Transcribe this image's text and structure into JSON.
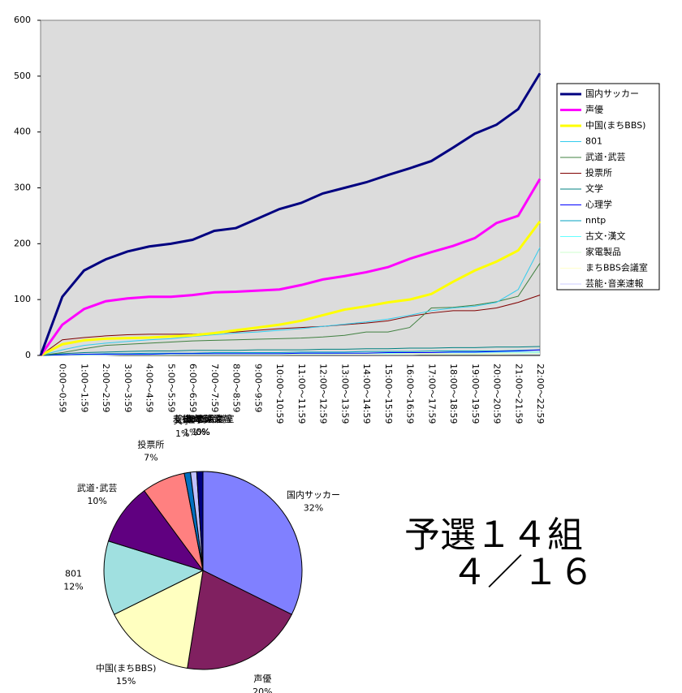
{
  "chart_data": [
    {
      "type": "line",
      "categories": [
        null,
        "0:00～0:59",
        "1:00～1:59",
        "2:00～2:59",
        "3:00～3:59",
        "4:00～4:59",
        "5:00～5:59",
        "6:00～6:59",
        "7:00～7:59",
        "8:00～8:59",
        "9:00～9:59",
        "10:00～10:59",
        "11:00～11:59",
        "12:00～12:59",
        "13:00～13:59",
        "14:00～14:59",
        "15:00～15:59",
        "16:00～16:59",
        "17:00～17:59",
        "18:00～18:59",
        "19:00～19:59",
        "20:00～20:59",
        "21:00～21:59",
        "22:00～22:59"
      ],
      "ylim": [
        0,
        600
      ],
      "yticks": [
        0,
        100,
        200,
        300,
        400,
        500,
        600
      ],
      "series": [
        {
          "name": "国内サッカー",
          "color": "#000080",
          "line_width": 3,
          "values": [
            0,
            105,
            152,
            172,
            186,
            195,
            200,
            207,
            223,
            228,
            245,
            262,
            273,
            290,
            300,
            310,
            323,
            335,
            348,
            372,
            397,
            413,
            441,
            505
          ]
        },
        {
          "name": "声優",
          "color": "#ff00ff",
          "line_width": 3,
          "values": [
            0,
            55,
            83,
            97,
            102,
            105,
            105,
            108,
            113,
            114,
            116,
            118,
            126,
            136,
            142,
            149,
            158,
            173,
            185,
            196,
            210,
            237,
            250,
            316
          ]
        },
        {
          "name": "中国(まちBBS)",
          "color": "#ffff00",
          "line_width": 3,
          "values": [
            0,
            20,
            27,
            30,
            31,
            32,
            34,
            36,
            40,
            45,
            50,
            55,
            62,
            72,
            82,
            88,
            95,
            100,
            110,
            132,
            152,
            168,
            188,
            240
          ]
        },
        {
          "name": "801",
          "color": "#33ccee",
          "line_width": 1,
          "values": [
            0,
            10,
            18,
            22,
            25,
            28,
            30,
            34,
            37,
            40,
            42,
            45,
            48,
            52,
            56,
            60,
            65,
            72,
            80,
            85,
            88,
            95,
            118,
            193
          ]
        },
        {
          "name": "武道･武芸",
          "color": "#408040",
          "line_width": 1,
          "values": [
            0,
            5,
            12,
            18,
            20,
            22,
            24,
            26,
            27,
            28,
            29,
            30,
            31,
            33,
            36,
            42,
            42,
            50,
            85,
            86,
            90,
            96,
            106,
            165
          ]
        },
        {
          "name": "投票所",
          "color": "#800000",
          "line_width": 1,
          "values": [
            0,
            28,
            32,
            35,
            37,
            38,
            38,
            38,
            40,
            42,
            45,
            48,
            50,
            52,
            55,
            58,
            62,
            70,
            76,
            80,
            80,
            85,
            95,
            108
          ]
        },
        {
          "name": "文学",
          "color": "#008080",
          "line_width": 1,
          "values": [
            0,
            3,
            5,
            6,
            7,
            8,
            8,
            9,
            9,
            9,
            10,
            10,
            10,
            11,
            11,
            12,
            12,
            13,
            13,
            14,
            14,
            15,
            15,
            16
          ]
        },
        {
          "name": "心理学",
          "color": "#0000ff",
          "line_width": 1,
          "values": [
            0,
            1,
            2,
            2,
            2,
            2,
            3,
            3,
            3,
            3,
            3,
            3,
            4,
            4,
            4,
            4,
            5,
            5,
            5,
            6,
            6,
            7,
            8,
            10
          ]
        },
        {
          "name": "nntp",
          "color": "#00a0c0",
          "line_width": 1,
          "values": [
            0,
            1,
            2,
            3,
            3,
            4,
            4,
            4,
            5,
            5,
            5,
            5,
            6,
            6,
            6,
            7,
            7,
            7,
            8,
            8,
            8,
            8,
            9,
            10
          ]
        },
        {
          "name": "古文･漢文",
          "color": "#66ffff",
          "line_width": 1,
          "values": [
            0,
            1,
            1,
            2,
            2,
            2,
            3,
            3,
            3,
            3,
            3,
            3,
            4,
            4,
            4,
            4,
            4,
            5,
            5,
            5,
            5,
            6,
            6,
            6
          ]
        },
        {
          "name": "家電製品",
          "color": "#ccffcc",
          "line_width": 1,
          "values": [
            0,
            0,
            1,
            1,
            1,
            1,
            1,
            2,
            2,
            2,
            2,
            2,
            2,
            2,
            3,
            3,
            3,
            3,
            3,
            3,
            3,
            4,
            4,
            4
          ]
        },
        {
          "name": "まちBBS会議室",
          "color": "#ffffcc",
          "line_width": 1,
          "values": [
            0,
            0,
            0,
            1,
            1,
            1,
            1,
            1,
            1,
            1,
            1,
            1,
            2,
            2,
            2,
            2,
            2,
            2,
            2,
            2,
            2,
            2,
            3,
            3
          ]
        },
        {
          "name": "芸能･音楽速報",
          "color": "#ccccff",
          "line_width": 1,
          "values": [
            0,
            0,
            0,
            0,
            1,
            1,
            1,
            1,
            1,
            1,
            1,
            1,
            1,
            1,
            1,
            1,
            1,
            1,
            2,
            2,
            2,
            2,
            2,
            2
          ]
        }
      ]
    },
    {
      "type": "pie",
      "categories": [
        "国内サッカー",
        "声優",
        "中国(まちBBS)",
        "801",
        "武道･武芸",
        "投票所",
        "文学",
        "心理学",
        "nntp",
        "古文･漢文",
        "家電製品",
        "まちBBS会議室",
        "芸能･音楽速報"
      ],
      "values": [
        32,
        20,
        15,
        12,
        10,
        7,
        1,
        1,
        1,
        0,
        0,
        0,
        0
      ],
      "value_labels": [
        "32%",
        "20%",
        "15%",
        "12%",
        "10%",
        "7%",
        "1%",
        "1%",
        "1%",
        "0%",
        "0%",
        "0%",
        "0%"
      ],
      "colors": [
        "#8080ff",
        "#802060",
        "#ffffc0",
        "#a0e0e0",
        "#600080",
        "#ff8080",
        "#0070c0",
        "#c0c0ff",
        "#000080",
        "#ff00ff",
        "#ffff00",
        "#00ffff",
        "#800080"
      ]
    }
  ],
  "annotation": [
    "予選１４組",
    "４／１６"
  ]
}
